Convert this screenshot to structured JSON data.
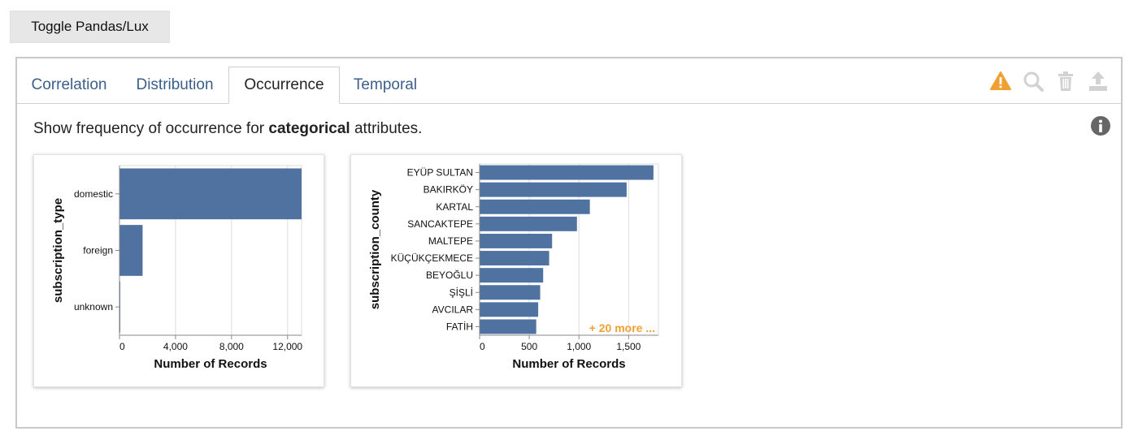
{
  "toggle_button": {
    "label": "Toggle Pandas/Lux"
  },
  "tabs": [
    {
      "label": "Correlation",
      "active": false
    },
    {
      "label": "Distribution",
      "active": false
    },
    {
      "label": "Occurrence",
      "active": true
    },
    {
      "label": "Temporal",
      "active": false
    }
  ],
  "toolbar_icons": [
    "warning-icon",
    "search-icon",
    "trash-icon",
    "export-icon"
  ],
  "colors": {
    "bar": "#4f72a1",
    "tab_link": "#3b5f8a",
    "warning": "#f0a030",
    "grid": "#dddddd"
  },
  "description": {
    "prefix": "Show frequency of occurrence for ",
    "highlight": "categorical",
    "suffix": " attributes."
  },
  "chart_data": [
    {
      "type": "bar",
      "orientation": "horizontal",
      "ylabel": "subscription_type",
      "xlabel": "Number of Records",
      "categories": [
        "domestic",
        "foreign",
        "unknown"
      ],
      "values": [
        13000,
        1650,
        20
      ],
      "xlim": [
        0,
        13000
      ],
      "xticks": [
        0,
        4000,
        8000,
        12000
      ],
      "xtick_labels": [
        "0",
        "4,000",
        "8,000",
        "12,000"
      ],
      "grid": true
    },
    {
      "type": "bar",
      "orientation": "horizontal",
      "ylabel": "subscription_county",
      "xlabel": "Number of Records",
      "categories": [
        "EYÜP SULTAN",
        "BAKIRKÖY",
        "KARTAL",
        "SANCAKTEPE",
        "MALTEPE",
        "KÜÇÜKÇEKMECE",
        "BEYOĞLU",
        "ŞİŞLİ",
        "AVCILAR",
        "FATİH"
      ],
      "values": [
        1750,
        1480,
        1110,
        980,
        730,
        700,
        640,
        610,
        590,
        570
      ],
      "xlim": [
        0,
        1800
      ],
      "xticks": [
        0,
        500,
        1000,
        1500
      ],
      "xtick_labels": [
        "0",
        "500",
        "1,000",
        "1,500"
      ],
      "grid": true,
      "annotation": "+ 20 more ..."
    }
  ]
}
